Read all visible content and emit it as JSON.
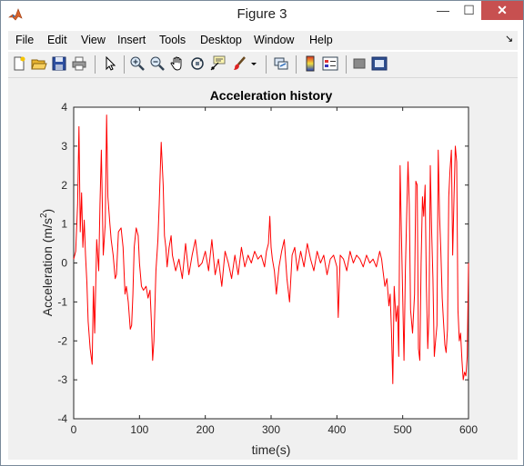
{
  "window": {
    "title": "Figure 3",
    "controls": {
      "minimize": "—",
      "maximize": "☐",
      "close": "✕"
    }
  },
  "menu": [
    "File",
    "Edit",
    "View",
    "Insert",
    "Tools",
    "Desktop",
    "Window",
    "Help"
  ],
  "menu_dock_glyph": "↘",
  "toolbar": [
    "new-figure-icon",
    "open-file-icon",
    "save-icon",
    "print-icon",
    "edit-plot-arrow-icon",
    "zoom-in-icon",
    "zoom-out-icon",
    "pan-hand-icon",
    "rotate-3d-icon",
    "data-cursor-icon",
    "brush-icon",
    "brush-dropdown-icon",
    "link-plot-icon",
    "insert-colorbar-icon",
    "insert-legend-icon",
    "hide-plot-tools-icon",
    "show-plot-tools-icon"
  ],
  "colors": {
    "line": "#ff0000",
    "close_button": "#c75050",
    "background": "#f0f0f0"
  },
  "chart_data": {
    "type": "line",
    "title": "Acceleration history",
    "xlabel": "time(s)",
    "ylabel": "Acceleration (m/s",
    "ylabel_superscript": "2",
    "ylabel_suffix": ")",
    "xlim": [
      0,
      600
    ],
    "ylim": [
      -4,
      4
    ],
    "xticks": [
      0,
      100,
      200,
      300,
      400,
      500,
      600
    ],
    "yticks": [
      -4,
      -3,
      -2,
      -1,
      0,
      1,
      2,
      3,
      4
    ],
    "grid": false,
    "series": [
      {
        "color": "#ff0000",
        "x": [
          0,
          3,
          6,
          8,
          10,
          12,
          14,
          16,
          18,
          20,
          22,
          25,
          28,
          30,
          32,
          35,
          38,
          40,
          42,
          45,
          48,
          50,
          52,
          55,
          57,
          60,
          63,
          65,
          68,
          72,
          75,
          78,
          80,
          83,
          86,
          88,
          90,
          92,
          95,
          98,
          100,
          103,
          106,
          110,
          113,
          116,
          118,
          120,
          122,
          125,
          128,
          130,
          133,
          136,
          138,
          140,
          142,
          145,
          148,
          150,
          155,
          160,
          165,
          170,
          175,
          180,
          185,
          190,
          195,
          200,
          205,
          210,
          215,
          220,
          225,
          230,
          235,
          240,
          245,
          250,
          255,
          260,
          265,
          270,
          275,
          280,
          285,
          290,
          293,
          296,
          298,
          300,
          302,
          305,
          308,
          312,
          316,
          320,
          324,
          328,
          332,
          336,
          340,
          345,
          350,
          355,
          360,
          365,
          370,
          375,
          380,
          385,
          390,
          395,
          400,
          402,
          405,
          410,
          415,
          420,
          425,
          430,
          435,
          440,
          445,
          450,
          455,
          460,
          465,
          468,
          470,
          473,
          476,
          479,
          481,
          483,
          485,
          487,
          490,
          492,
          494,
          496,
          498,
          500,
          502,
          504,
          506,
          508,
          510,
          512,
          515,
          518,
          520,
          522,
          524,
          526,
          528,
          530,
          532,
          534,
          536,
          538,
          540,
          542,
          544,
          546,
          548,
          550,
          552,
          554,
          556,
          558,
          560,
          562,
          564,
          566,
          568,
          570,
          572,
          574,
          576,
          578,
          580,
          582,
          584,
          586,
          588,
          590,
          592,
          594,
          596,
          598,
          600
        ],
        "y": [
          0.1,
          0.3,
          1.5,
          3.5,
          0.8,
          1.8,
          0.4,
          1.1,
          0.2,
          -0.5,
          -1.5,
          -2.2,
          -2.6,
          -0.6,
          -1.8,
          0.6,
          -0.2,
          1.5,
          2.9,
          0.2,
          1.0,
          3.8,
          1.7,
          1.0,
          0.6,
          0.2,
          -0.4,
          -0.3,
          0.8,
          0.9,
          0.4,
          -0.8,
          -0.6,
          -1.0,
          -1.7,
          -1.6,
          -0.8,
          0.4,
          0.9,
          0.7,
          0.0,
          -0.6,
          -0.7,
          -0.6,
          -0.9,
          -0.7,
          -1.5,
          -2.5,
          -2.0,
          -0.2,
          0.6,
          1.5,
          3.1,
          2.0,
          0.7,
          0.4,
          -0.1,
          0.4,
          0.7,
          0.2,
          -0.2,
          0.1,
          -0.4,
          0.5,
          -0.3,
          0.2,
          0.6,
          -0.1,
          0.0,
          0.3,
          -0.2,
          0.6,
          -0.3,
          0.1,
          -0.6,
          0.3,
          0.0,
          -0.4,
          0.2,
          -0.3,
          0.4,
          -0.1,
          0.2,
          0.0,
          0.3,
          0.1,
          0.2,
          -0.1,
          0.3,
          0.5,
          1.2,
          0.4,
          0.1,
          -0.2,
          -0.8,
          -0.1,
          0.3,
          0.6,
          -0.4,
          -1.0,
          0.2,
          0.4,
          -0.2,
          0.3,
          -0.1,
          0.5,
          0.1,
          -0.2,
          0.3,
          0.0,
          0.2,
          -0.3,
          0.1,
          0.2,
          -0.1,
          -1.4,
          0.2,
          0.1,
          -0.2,
          0.3,
          0.0,
          0.2,
          0.1,
          -0.1,
          0.2,
          0.0,
          0.1,
          -0.1,
          0.3,
          0.1,
          -0.2,
          -0.6,
          -0.4,
          -1.1,
          -0.8,
          -1.8,
          -3.1,
          -0.6,
          -1.5,
          -1.1,
          -2.4,
          2.5,
          0.8,
          -0.9,
          -2.5,
          -0.2,
          1.2,
          2.6,
          1.5,
          -1.2,
          -1.8,
          -0.8,
          2.1,
          2.0,
          -2.2,
          -2.5,
          0.0,
          1.7,
          1.2,
          2.0,
          -0.6,
          -2.2,
          -1.3,
          2.5,
          0.8,
          -0.4,
          -2.4,
          -2.0,
          -1.6,
          2.9,
          1.2,
          0.3,
          -0.9,
          -1.5,
          -2.1,
          -2.3,
          -1.7,
          1.7,
          2.4,
          2.9,
          0.2,
          1.7,
          3.0,
          2.6,
          -1.2,
          -2.0,
          -1.8,
          -2.5,
          -3.0,
          -2.8,
          -2.9,
          -2.4,
          0.0
        ]
      }
    ]
  }
}
